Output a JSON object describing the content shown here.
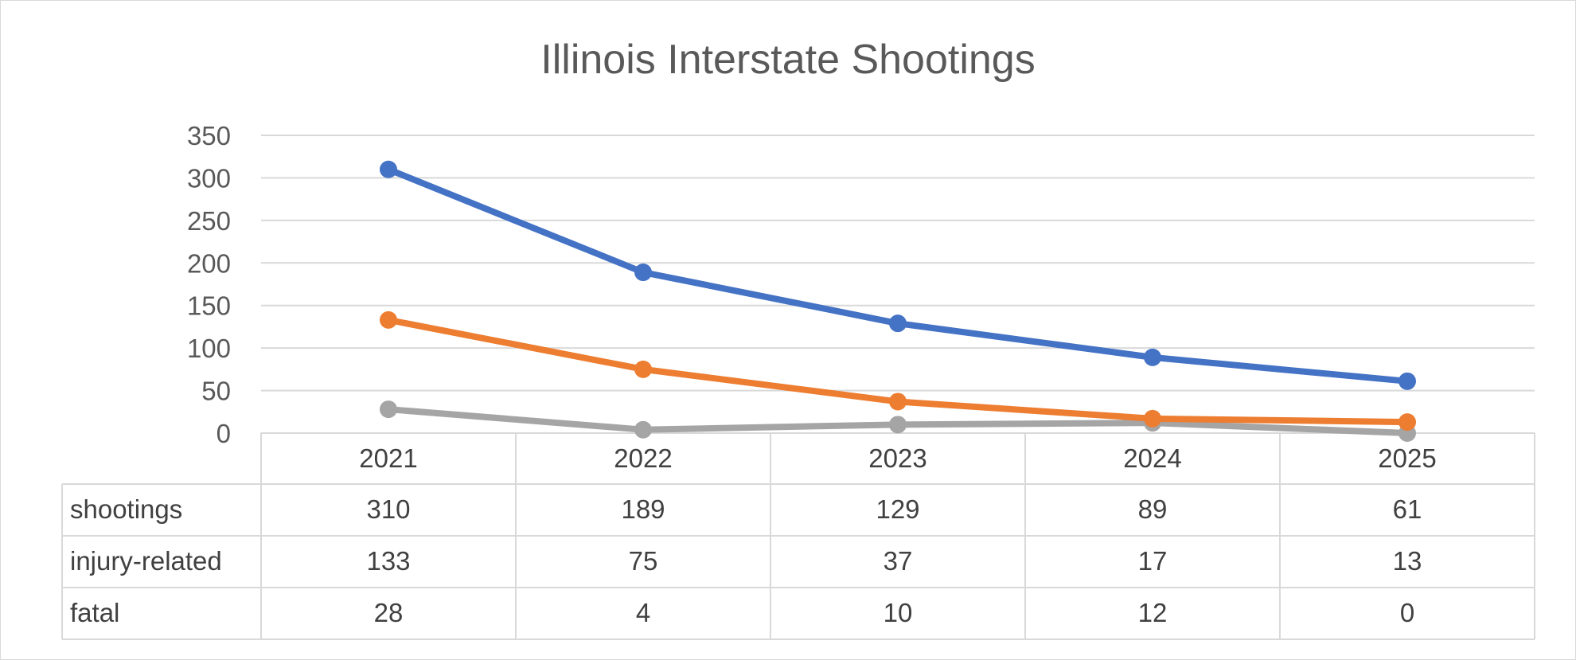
{
  "chart_data": {
    "type": "line",
    "title": "Illinois Interstate Shootings",
    "categories": [
      "2021",
      "2022",
      "2023",
      "2024",
      "2025"
    ],
    "ylim": [
      0,
      350
    ],
    "yticks": [
      0,
      50,
      100,
      150,
      200,
      250,
      300,
      350
    ],
    "grid": true,
    "legend": "data-table",
    "series": [
      {
        "name": "shootings",
        "values": [
          310,
          189,
          129,
          89,
          61
        ],
        "color": "#4472C4"
      },
      {
        "name": "injury-related",
        "values": [
          133,
          75,
          37,
          17,
          13
        ],
        "color": "#ED7D31"
      },
      {
        "name": "fatal",
        "values": [
          28,
          4,
          10,
          12,
          0
        ],
        "color": "#A5A5A5"
      }
    ]
  }
}
